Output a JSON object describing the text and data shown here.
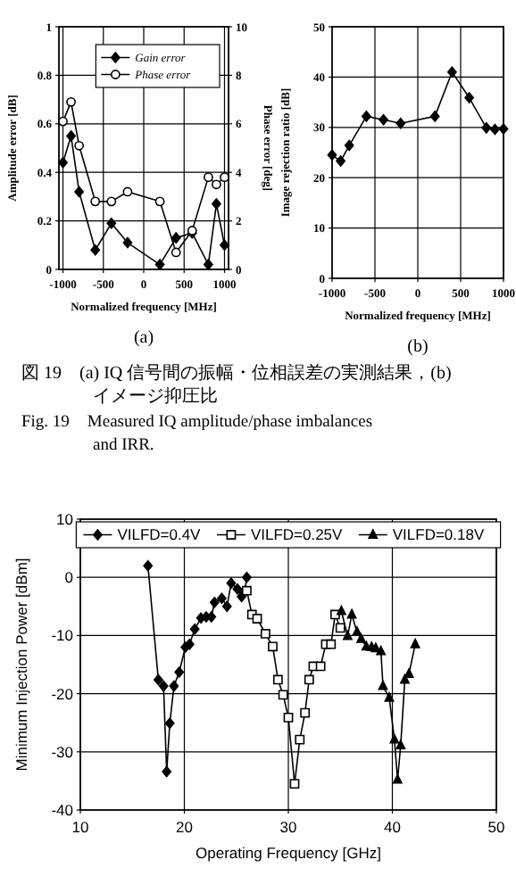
{
  "chart_data": [
    {
      "type": "line",
      "title": "(a)",
      "xlabel": "Normalized frequency [MHz]",
      "ylabel": "Amplitude error [dB]",
      "y2label": "Phase error [deg]",
      "xlim": [
        -1050,
        1050
      ],
      "xticks": [
        -1000,
        -500,
        0,
        500,
        1000
      ],
      "ylim": [
        0,
        1
      ],
      "yticks": [
        0,
        0.2,
        0.4,
        0.6,
        0.8,
        1
      ],
      "y2lim": [
        0,
        10
      ],
      "y2ticks": [
        0,
        2,
        4,
        6,
        8,
        10
      ],
      "grid": true,
      "legend": "top right",
      "series": [
        {
          "name": "Gain error",
          "color": "#000000",
          "marker": "diamond",
          "x": [
            -1000,
            -900,
            -800,
            -600,
            -400,
            -200,
            200,
            400,
            600,
            800,
            900,
            1000
          ],
          "values": [
            0.44,
            0.55,
            0.32,
            0.08,
            0.19,
            0.11,
            0.02,
            0.13,
            0.15,
            0.02,
            0.27,
            0.1
          ]
        },
        {
          "name": "Phase error",
          "color": "#000000",
          "marker": "circle",
          "axis": "y2",
          "x": [
            -1000,
            -900,
            -800,
            -600,
            -400,
            -200,
            200,
            400,
            600,
            800,
            900,
            1000
          ],
          "values": [
            6.1,
            6.9,
            5.1,
            2.8,
            2.8,
            3.2,
            2.8,
            0.7,
            1.6,
            3.8,
            3.5,
            3.8
          ]
        }
      ],
      "annotations": [
        "図 19　(a) IQ 信号間の振幅・位相誤差の実測結果，(b)",
        "イメージ抑圧比",
        "Fig. 19　Measured IQ amplitude/phase imbalances",
        "and IRR."
      ]
    },
    {
      "type": "line",
      "title": "(b)",
      "xlabel": "Normalized frequency [MHz]",
      "ylabel": "Image rejection ratio [dB]",
      "xlim": [
        -1000,
        1000
      ],
      "xticks": [
        -1000,
        -500,
        0,
        500,
        1000
      ],
      "ylim": [
        0,
        50
      ],
      "yticks": [
        0,
        10,
        20,
        30,
        40,
        50
      ],
      "grid": true,
      "series": [
        {
          "color": "#000000",
          "marker": "diamond",
          "x": [
            -1000,
            -900,
            -800,
            -600,
            -400,
            -200,
            200,
            400,
            600,
            800,
            900,
            1000
          ],
          "values": [
            24.5,
            23.3,
            26.4,
            32.2,
            31.5,
            30.8,
            32.2,
            41.0,
            35.9,
            29.9,
            29.6,
            29.7
          ]
        }
      ]
    },
    {
      "type": "line",
      "xlabel": "Operating Frequency [GHz]",
      "ylabel": "Minimum Injection Power [dBm]",
      "xlim": [
        10,
        50
      ],
      "xticks": [
        10,
        20,
        30,
        40,
        50
      ],
      "ylim": [
        -40,
        10
      ],
      "yticks": [
        -40,
        -30,
        -20,
        -10,
        0,
        10
      ],
      "grid": true,
      "legend": "top",
      "series": [
        {
          "name": "VILFD=0.4V",
          "color": "#000000",
          "marker": "diamond",
          "x": [
            16.5,
            17.5,
            18.0,
            18.3,
            18.6,
            19.0,
            19.5,
            20.1,
            20.5,
            21.0,
            21.6,
            22.1,
            22.6,
            22.9,
            23.6,
            24.1,
            24.5,
            25.1,
            25.5,
            25.8,
            26.0
          ],
          "values": [
            2.0,
            -17.6,
            -18.7,
            -33.4,
            -25.1,
            -18.7,
            -16.3,
            -12.0,
            -11.5,
            -8.9,
            -7.0,
            -6.8,
            -6.8,
            -4.3,
            -3.6,
            -5.0,
            -1.0,
            -2.0,
            -3.3,
            -2.5,
            0.0
          ]
        },
        {
          "name": "VILFD=0.25V",
          "color": "#000000",
          "marker": "square",
          "x": [
            26.0,
            26.5,
            27.0,
            27.8,
            28.5,
            29.0,
            29.5,
            30.0,
            30.6,
            31.1,
            31.6,
            32.0,
            32.4,
            33.1,
            33.6,
            34.1,
            34.5,
            35.0
          ],
          "values": [
            -2.3,
            -6.4,
            -7.1,
            -9.7,
            -11.9,
            -17.6,
            -20.2,
            -24.1,
            -35.5,
            -27.9,
            -23.3,
            -17.6,
            -15.3,
            -15.3,
            -11.5,
            -11.5,
            -6.4,
            -8.7
          ]
        },
        {
          "name": "VILFD=0.18V",
          "color": "#000000",
          "marker": "triangle",
          "x": [
            35.1,
            35.7,
            36.1,
            36.6,
            37.0,
            37.5,
            38.0,
            38.4,
            38.9,
            39.1,
            39.7,
            40.2,
            40.5,
            40.8,
            41.2,
            41.6,
            42.2
          ],
          "values": [
            -5.8,
            -10.1,
            -6.4,
            -9.4,
            -10.6,
            -11.9,
            -12.0,
            -12.2,
            -12.7,
            -18.7,
            -20.7,
            -27.9,
            -34.8,
            -28.9,
            -17.6,
            -16.6,
            -11.5
          ]
        }
      ]
    }
  ]
}
